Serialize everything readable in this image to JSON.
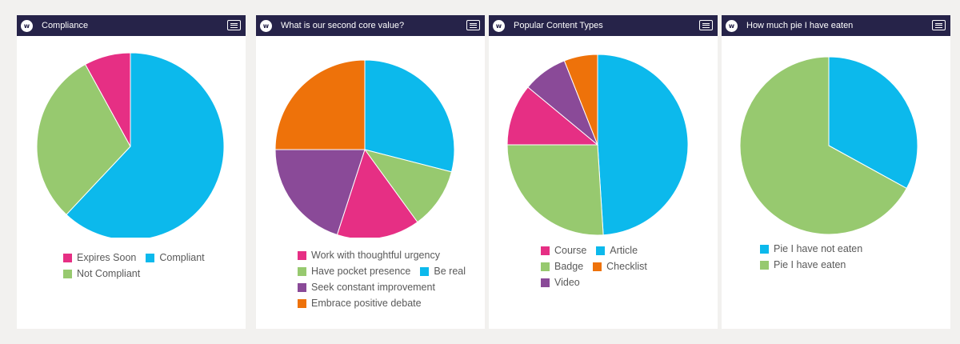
{
  "chart_data": [
    {
      "type": "pie",
      "title": "Compliance",
      "slices": [
        {
          "label": "Compliant",
          "value": 62,
          "color": "#0cb9ec"
        },
        {
          "label": "Not Compliant",
          "value": 30,
          "color": "#97c96f"
        },
        {
          "label": "Expires Soon",
          "value": 8,
          "color": "#e62f84"
        }
      ],
      "legend": [
        [
          "Expires Soon",
          "Compliant"
        ],
        [
          "Not Compliant"
        ]
      ],
      "legend_placement": "bottom"
    },
    {
      "type": "pie",
      "title": "What is our second core value?",
      "slices": [
        {
          "label": "Be real",
          "value": 29,
          "color": "#0cb9ec"
        },
        {
          "label": "Have pocket presence",
          "value": 11,
          "color": "#97c96f"
        },
        {
          "label": "Work with thoughtful urgency",
          "value": 15,
          "color": "#e62f84"
        },
        {
          "label": "Seek constant improvement",
          "value": 20,
          "color": "#8a4a98"
        },
        {
          "label": "Embrace positive debate",
          "value": 25,
          "color": "#ee720a"
        }
      ],
      "legend": [
        [
          "Work with thoughtful urgency"
        ],
        [
          "Have pocket presence",
          "Be real"
        ],
        [
          "Seek constant improvement"
        ],
        [
          "Embrace positive debate"
        ]
      ],
      "legend_placement": "bottom"
    },
    {
      "type": "pie",
      "title": "Popular Content Types",
      "slices": [
        {
          "label": "Article",
          "value": 49,
          "color": "#0cb9ec"
        },
        {
          "label": "Badge",
          "value": 26,
          "color": "#97c96f"
        },
        {
          "label": "Course",
          "value": 11,
          "color": "#e62f84"
        },
        {
          "label": "Video",
          "value": 8,
          "color": "#8a4a98"
        },
        {
          "label": "Checklist",
          "value": 6,
          "color": "#ee720a"
        }
      ],
      "legend": [
        [
          "Course",
          "Article"
        ],
        [
          "Badge",
          "Checklist"
        ],
        [
          "Video"
        ]
      ],
      "legend_placement": "bottom"
    },
    {
      "type": "pie",
      "title": "How much pie I have eaten",
      "slices": [
        {
          "label": "Pie I have not eaten",
          "value": 33,
          "color": "#0cb9ec"
        },
        {
          "label": "Pie I have eaten",
          "value": 67,
          "color": "#97c96f"
        }
      ],
      "legend": [
        [
          "Pie I have not eaten"
        ],
        [
          "Pie I have eaten"
        ]
      ],
      "legend_placement": "bottom"
    }
  ],
  "widgets": [
    {
      "logo": "w",
      "menu_icon": "hamburger-menu-icon"
    },
    {
      "logo": "w",
      "menu_icon": "hamburger-menu-icon"
    },
    {
      "logo": "w",
      "menu_icon": "hamburger-menu-icon"
    },
    {
      "logo": "w",
      "menu_icon": "hamburger-menu-icon"
    }
  ]
}
